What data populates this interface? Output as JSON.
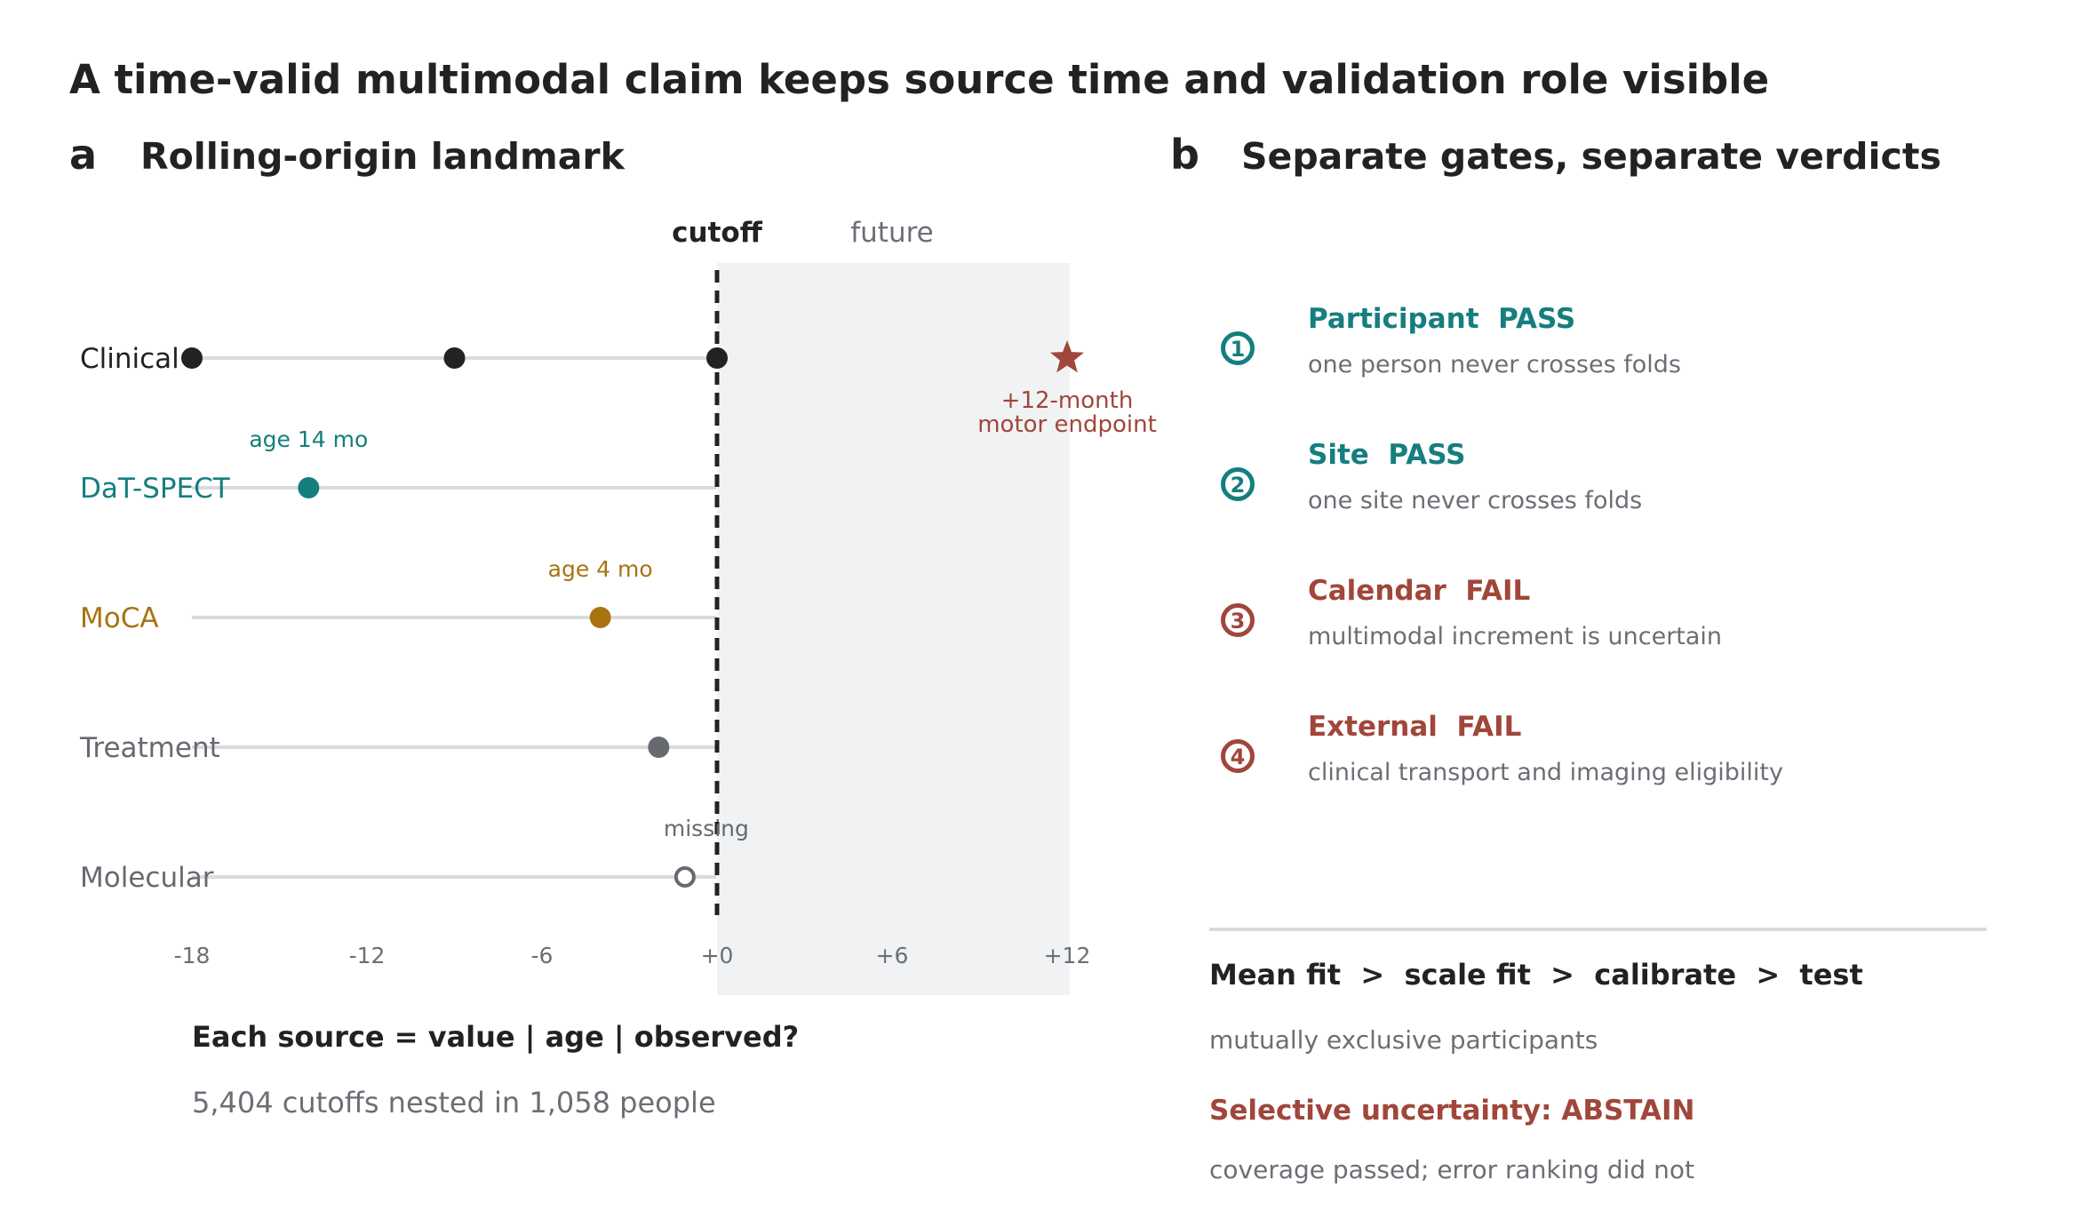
{
  "title": "A time-valid multimodal claim keeps source time and validation role visible",
  "panel_a": {
    "letter": "a",
    "heading": "Rolling-origin landmark",
    "cutoff_label": "cutoff",
    "future_label": "future",
    "x_ticks": [
      {
        "value": -18,
        "label": "-18"
      },
      {
        "value": -12,
        "label": "-12"
      },
      {
        "value": -6,
        "label": "-6"
      },
      {
        "value": 0,
        "label": "+0"
      },
      {
        "value": 6,
        "label": "+6"
      },
      {
        "value": 12,
        "label": "+12"
      }
    ],
    "x_range": [
      -18,
      12
    ],
    "future_range": [
      0,
      12
    ],
    "rows": [
      {
        "key": "clinical",
        "label": "Clinical",
        "color": "#222222",
        "line_start": -18,
        "points": [
          {
            "x": -18,
            "filled": true
          },
          {
            "x": -9,
            "filled": true
          },
          {
            "x": 0,
            "filled": true
          }
        ],
        "annotation": ""
      },
      {
        "key": "dat-spect",
        "label": "DaT-SPECT",
        "color": "#157e7e",
        "line_start": -18,
        "points": [
          {
            "x": -14,
            "filled": true
          }
        ],
        "annotation": "age 14 mo"
      },
      {
        "key": "moca",
        "label": "MoCA",
        "color": "#a87412",
        "line_start": -18,
        "points": [
          {
            "x": -4,
            "filled": true
          }
        ],
        "annotation": "age 4 mo"
      },
      {
        "key": "treatment",
        "label": "Treatment",
        "color": "#666a70",
        "line_start": -18,
        "points": [
          {
            "x": -2,
            "filled": true
          }
        ],
        "annotation": ""
      },
      {
        "key": "molecular",
        "label": "Molecular",
        "color": "#666a70",
        "line_start": -18,
        "points": [
          {
            "x": -1.1,
            "filled": false
          }
        ],
        "annotation": "missing"
      }
    ],
    "endpoint": {
      "x": 12,
      "row": "clinical",
      "line1": "+12-month",
      "line2": "motor endpoint",
      "color": "#a0463a"
    },
    "caption_bold": "Each source = value | age | observed?",
    "caption": "5,404 cutoffs nested in 1,058 people"
  },
  "panel_b": {
    "letter": "b",
    "heading": "Separate gates, separate verdicts",
    "gates": [
      {
        "number": "1",
        "name": "Participant",
        "verdict": "PASS",
        "detail": "one person never crosses folds",
        "color": "#157e7e"
      },
      {
        "number": "2",
        "name": "Site",
        "verdict": "PASS",
        "detail": "one site never crosses folds",
        "color": "#157e7e"
      },
      {
        "number": "3",
        "name": "Calendar",
        "verdict": "FAIL",
        "detail": "multimodal increment is uncertain",
        "color": "#a0463a"
      },
      {
        "number": "4",
        "name": "External",
        "verdict": "FAIL",
        "detail": "clinical transport and imaging eligibility",
        "color": "#a0463a"
      }
    ],
    "pipeline": "Mean fit  >  scale fit  >  calibrate  >  test",
    "pipeline_note": "mutually exclusive participants",
    "selective": "Selective uncertainty: ABSTAIN",
    "selective_note": "coverage passed; error ranking did not",
    "colors": {
      "pass": "#157e7e",
      "fail": "#a0463a"
    }
  }
}
